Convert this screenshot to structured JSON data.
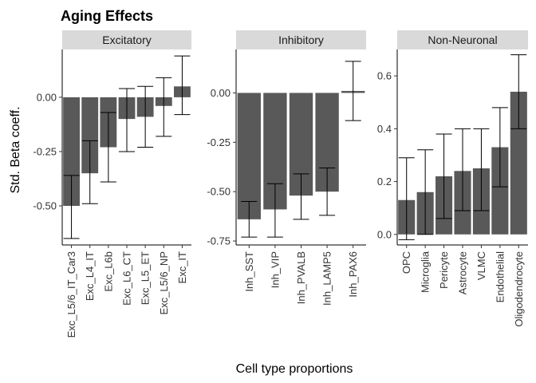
{
  "chart_data": {
    "type": "bar",
    "title": "Aging Effects",
    "xlabel": "Cell type proportions",
    "ylabel": "Std. Beta coeff.",
    "grid": false,
    "panels": [
      {
        "name": "Excitatory",
        "ylim": [
          -0.68,
          0.22
        ],
        "yticks": [
          -0.5,
          -0.25,
          0.0
        ],
        "ytick_labels": [
          "-0.50",
          "-0.25",
          "0.00"
        ],
        "categories": [
          "Exc_L5/6_IT_Car3",
          "Exc_L4_IT",
          "Exc_L6b",
          "Exc_L6_CT",
          "Exc_L5_ET",
          "Exc_L5/6_NP",
          "Exc_IT"
        ],
        "values": [
          -0.5,
          -0.35,
          -0.23,
          -0.1,
          -0.09,
          -0.04,
          0.05
        ],
        "ci_low": [
          -0.65,
          -0.49,
          -0.39,
          -0.25,
          -0.23,
          -0.18,
          -0.08
        ],
        "ci_high": [
          -0.36,
          -0.2,
          -0.07,
          0.04,
          0.05,
          0.09,
          0.19
        ]
      },
      {
        "name": "Inhibitory",
        "ylim": [
          -0.77,
          0.22
        ],
        "yticks": [
          -0.75,
          -0.5,
          -0.25,
          0.0
        ],
        "ytick_labels": [
          "-0.75",
          "-0.50",
          "-0.25",
          "0.00"
        ],
        "categories": [
          "Inh_SST",
          "Inh_VIP",
          "Inh_PVALB",
          "Inh_LAMP5",
          "Inh_PAX6"
        ],
        "values": [
          -0.64,
          -0.59,
          -0.52,
          -0.5,
          0.01
        ],
        "ci_low": [
          -0.73,
          -0.73,
          -0.64,
          -0.62,
          -0.14
        ],
        "ci_high": [
          -0.55,
          -0.46,
          -0.41,
          -0.38,
          0.16
        ]
      },
      {
        "name": "Non-Neuronal",
        "ylim": [
          -0.04,
          0.7
        ],
        "yticks": [
          0.0,
          0.2,
          0.4,
          0.6
        ],
        "ytick_labels": [
          "0.0",
          "0.2",
          "0.4",
          "0.6"
        ],
        "categories": [
          "OPC",
          "Microglia",
          "Pericyte",
          "Astrocyte",
          "VLMC",
          "Endothelial",
          "Oligodendrocyte"
        ],
        "values": [
          0.13,
          0.16,
          0.22,
          0.24,
          0.25,
          0.33,
          0.54
        ],
        "ci_low": [
          -0.02,
          0.0,
          0.06,
          0.09,
          0.09,
          0.18,
          0.4
        ],
        "ci_high": [
          0.29,
          0.32,
          0.38,
          0.4,
          0.4,
          0.48,
          0.68
        ]
      }
    ]
  },
  "colors": {
    "bar_fill": "#595959",
    "strip_fill": "#d9d9d9",
    "axis": "#000000"
  }
}
